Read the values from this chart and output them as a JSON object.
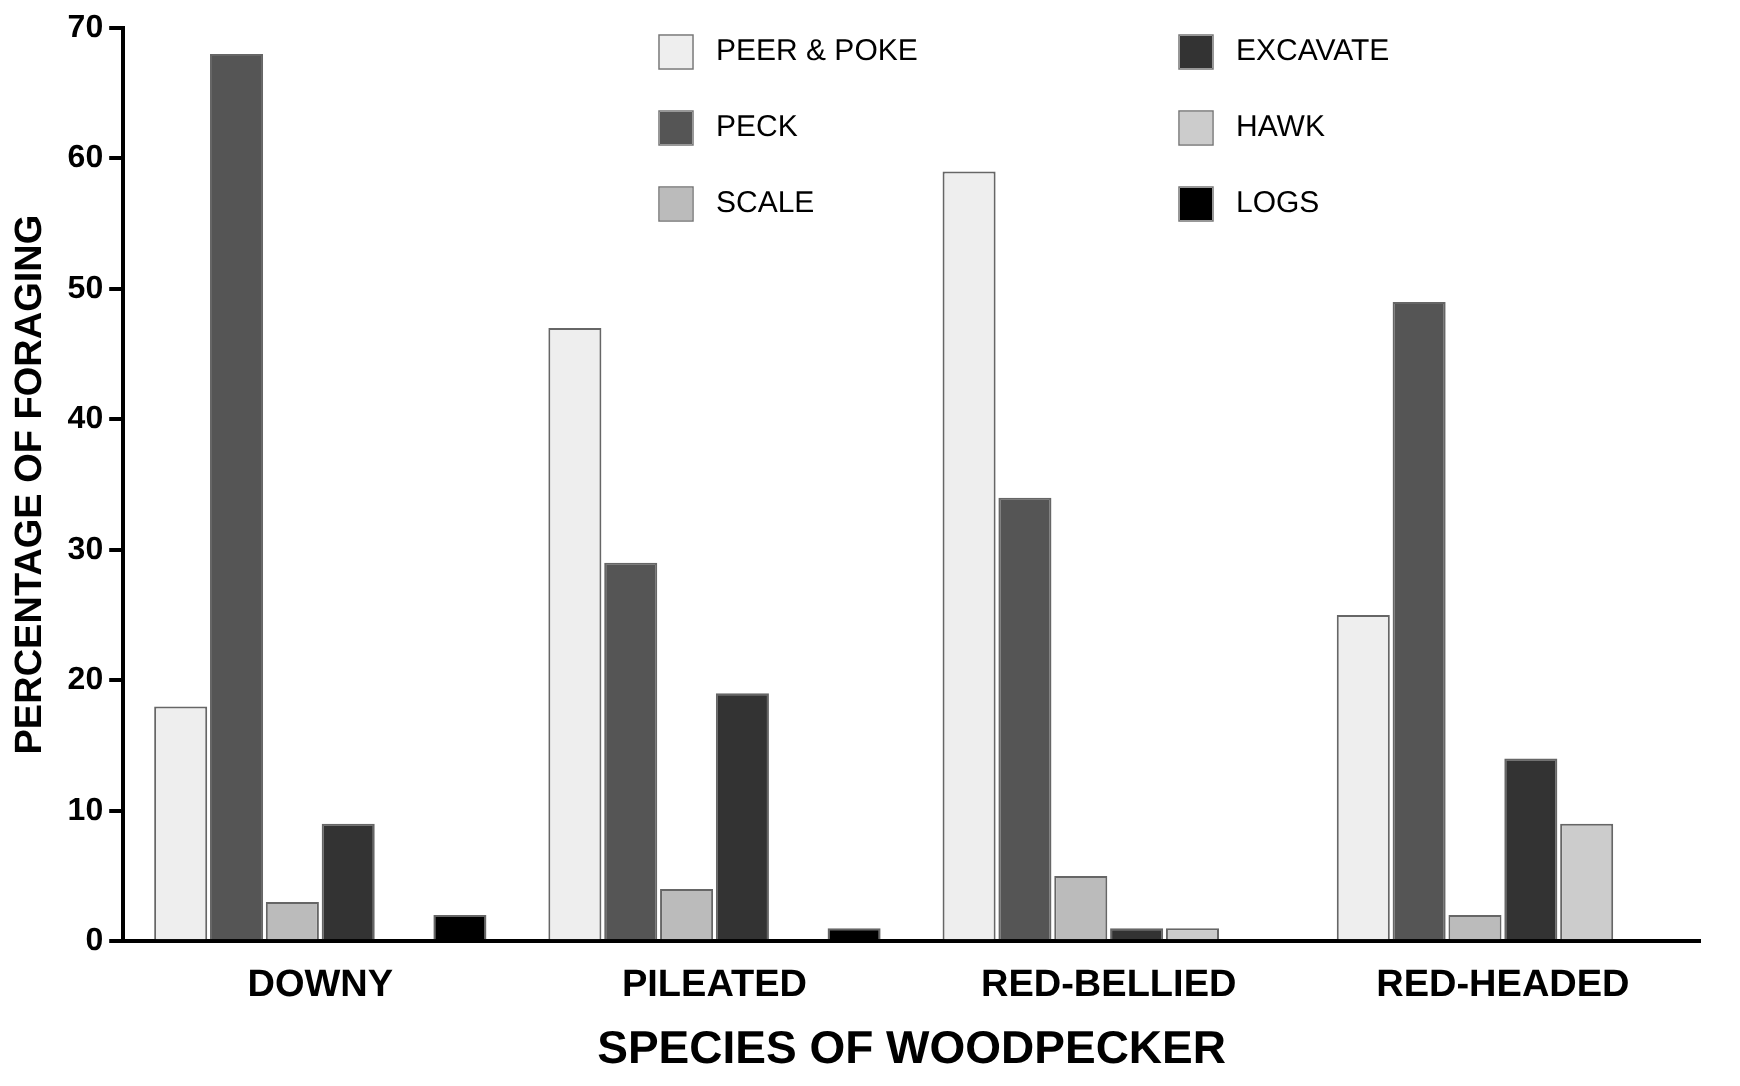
{
  "chart_data": {
    "type": "bar",
    "xlabel": "SPECIES OF WOODPECKER",
    "ylabel": "PERCENTAGE OF FORAGING",
    "categories": [
      "DOWNY",
      "PILEATED",
      "RED-BELLIED",
      "RED-HEADED"
    ],
    "series": [
      {
        "name": "PEER & POKE",
        "color": "#eeeeee",
        "values": [
          18,
          47,
          59,
          25
        ]
      },
      {
        "name": "PECK",
        "color": "#555555",
        "values": [
          68,
          29,
          34,
          49
        ]
      },
      {
        "name": "SCALE",
        "color": "#bbbbbb",
        "values": [
          3,
          4,
          5,
          2
        ]
      },
      {
        "name": "EXCAVATE",
        "color": "#333333",
        "values": [
          9,
          19,
          1,
          14
        ]
      },
      {
        "name": "HAWK",
        "color": "#cccccc",
        "values": [
          0,
          0,
          1,
          9
        ]
      },
      {
        "name": "LOGS",
        "color": "#000000",
        "values": [
          2,
          1,
          0,
          0
        ]
      }
    ],
    "ylim": [
      0,
      70
    ],
    "yticks": [
      0,
      10,
      20,
      30,
      40,
      50,
      60,
      70
    ],
    "grid": false,
    "legend": "top right"
  }
}
